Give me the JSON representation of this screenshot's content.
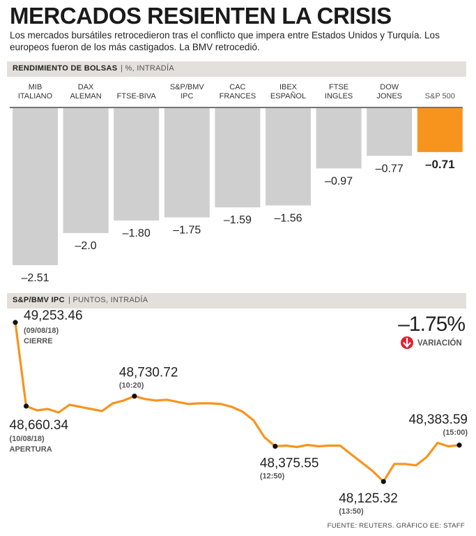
{
  "header": {
    "title": "MERCADOS RESIENTEN LA CRISIS",
    "subtitle": "Los mercados bursátiles retrocedieron tras el conflicto que impera entre Estados Unidos y Turquía. Los europeos fueron de los más castigados. La BMV retrocedió."
  },
  "colors": {
    "bar_gray": "#cfcfcf",
    "accent": "#f7941d",
    "header_bg": "#e3dfda",
    "red": "#e02030"
  },
  "chart_data": [
    {
      "type": "bar",
      "section_label": "RENDIMIENTO DE BOLSAS",
      "section_sublabel": "%, INTRADÍA",
      "categories": [
        [
          "MIB",
          "ITALIANO"
        ],
        [
          "DAX",
          "ALEMAN"
        ],
        [
          "FTSE-BIVA"
        ],
        [
          "S&P/BMV",
          "IPC"
        ],
        [
          "CAC",
          "FRANCES"
        ],
        [
          "IBEX",
          "ESPAÑOL"
        ],
        [
          "FTSE",
          "INGLES"
        ],
        [
          "DOW",
          "JONES"
        ],
        [
          "S&P 500"
        ]
      ],
      "values": [
        -2.51,
        -2.0,
        -1.8,
        -1.75,
        -1.59,
        -1.56,
        -0.97,
        -0.77,
        -0.71
      ],
      "value_labels": [
        "–2.51",
        "–2.0",
        "–1.80",
        "–1.75",
        "–1.59",
        "–1.56",
        "–0.97",
        "–0.77",
        "–0.71"
      ],
      "highlight_index": 8,
      "ylim": [
        -2.7,
        0
      ]
    },
    {
      "type": "line",
      "section_label": "S&P/BMV IPC",
      "section_sublabel": "PUNTOS, INTRADÍA",
      "variation": "–1.75%",
      "variation_label": "VARIACIÓN",
      "ylim": [
        48000,
        49350
      ],
      "values": [
        49253.46,
        48660.34,
        48630,
        48640,
        48615,
        48670,
        48655,
        48640,
        48625,
        48680,
        48700,
        48730.72,
        48710,
        48700,
        48705,
        48690,
        48675,
        48680,
        48680,
        48675,
        48655,
        48620,
        48560,
        48440,
        48375.55,
        48380,
        48370,
        48385,
        48375,
        48380,
        48380,
        48320,
        48260,
        48200,
        48125.32,
        48250,
        48250,
        48240,
        48300,
        48400,
        48375,
        48383.59
      ],
      "annotations": [
        {
          "index": 0,
          "value": "49,253.46",
          "date": "(09/08/18)",
          "label": "CIERRE"
        },
        {
          "index": 1,
          "value": "48,660.34",
          "date": "(10/08/18)",
          "label": "APERTURA"
        },
        {
          "index": 11,
          "value": "48,730.72",
          "date": "(10:20)",
          "label": ""
        },
        {
          "index": 24,
          "value": "48,375.55",
          "date": "(12:50)",
          "label": ""
        },
        {
          "index": 34,
          "value": "48,125.32",
          "date": "(13:50)",
          "label": ""
        },
        {
          "index": 41,
          "value": "48,383.59",
          "date": "(15:00)",
          "label": ""
        }
      ]
    }
  ],
  "footer": {
    "source": "FUENTE: REUTERS. GRÁFICO EE: STAFF"
  }
}
